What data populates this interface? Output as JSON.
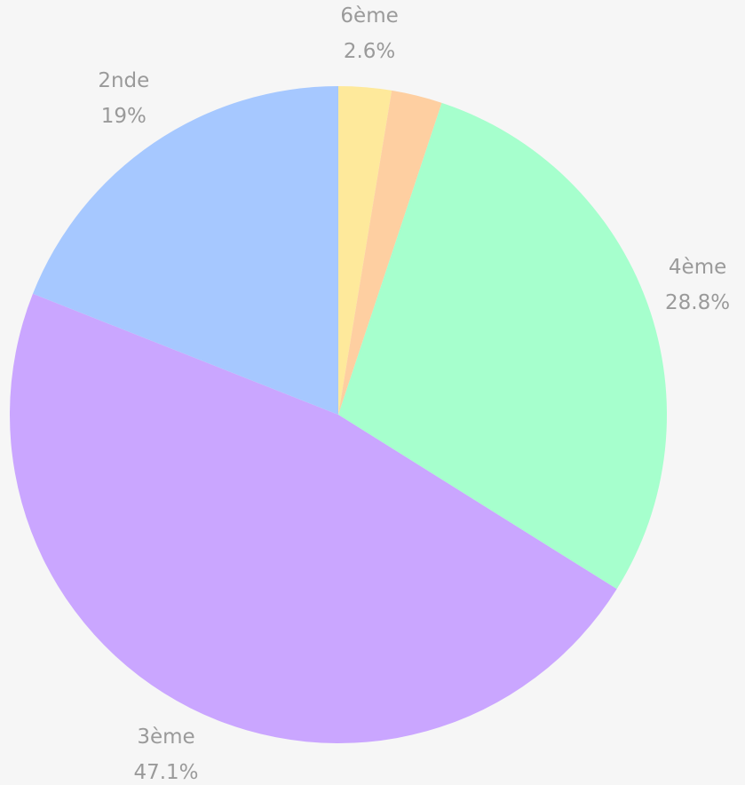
{
  "chart_data": {
    "type": "pie",
    "categories": [
      "6ème",
      null,
      "4ème",
      "3ème",
      "2nde"
    ],
    "values": [
      2.6,
      2.5,
      28.8,
      47.1,
      19
    ],
    "value_labels": [
      "2.6%",
      null,
      "28.8%",
      "47.1%",
      "19%"
    ],
    "colors": [
      "#fee99b",
      "#fecfa1",
      "#a6ffcd",
      "#caa6ff",
      "#a6c8ff"
    ]
  }
}
